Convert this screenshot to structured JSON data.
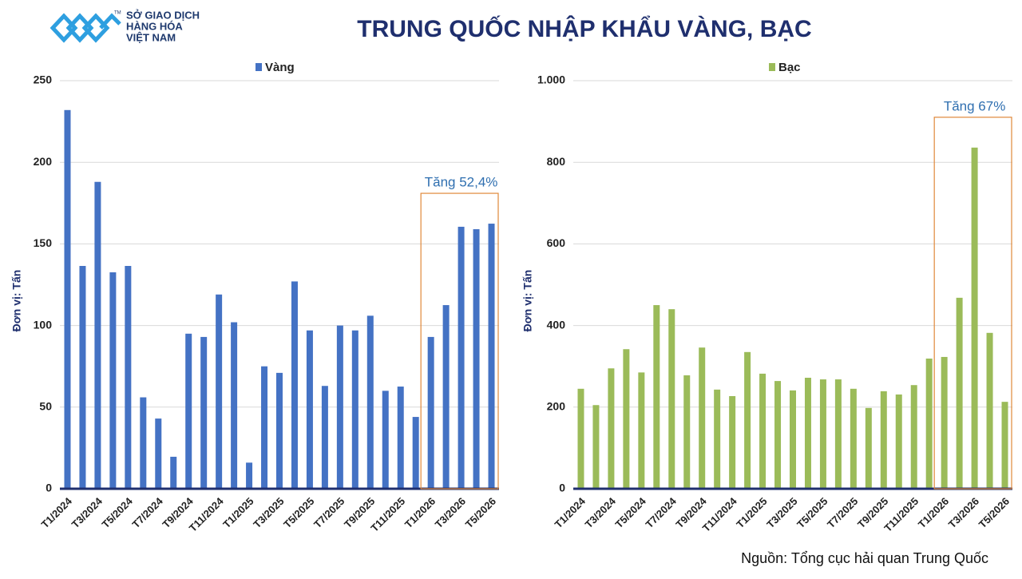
{
  "logo": {
    "lines": [
      "SỞ GIAO DỊCH",
      "HÀNG HÓA",
      "VIỆT NAM"
    ],
    "mark": "TM"
  },
  "title": "TRUNG QUỐC NHẬP KHẨU VÀNG, BẠC",
  "source": "Nguồn: Tổng cục hải quan Trung Quốc",
  "chart_data": [
    {
      "type": "bar",
      "y_label": "Đơn vị: Tấn",
      "categories": [
        "T1/2024",
        null,
        "T3/2024",
        null,
        "T5/2024",
        null,
        "T7/2024",
        null,
        "T9/2024",
        null,
        "T11/2024",
        null,
        "T1/2025",
        null,
        "T3/2025",
        null,
        "T5/2025",
        null,
        "T7/2025",
        null,
        "T9/2025",
        null,
        "T11/2025",
        null,
        "T1/2026",
        null,
        "T3/2026",
        null,
        "T5/2026"
      ],
      "series": [
        {
          "name": "Vàng",
          "color": "#4472c4",
          "values": [
            232,
            136.5,
            188,
            132.6,
            136.5,
            56,
            43,
            19.6,
            95,
            93,
            119,
            102,
            16,
            75,
            71,
            127,
            97,
            63,
            100,
            97,
            106,
            60,
            62.6,
            44,
            93,
            112.5,
            160.5,
            159,
            162.4
          ]
        }
      ],
      "ylim": [
        0,
        250
      ],
      "yticks": [
        0,
        50,
        100,
        150,
        200,
        250
      ],
      "grid": true,
      "annotation": "Tăng 52,4%"
    },
    {
      "type": "bar",
      "y_label": "Đơn vị: Tấn",
      "categories": [
        "T1/2024",
        null,
        "T3/2024",
        null,
        "T5/2024",
        null,
        "T7/2024",
        null,
        "T9/2024",
        null,
        "T11/2024",
        null,
        "T1/2025",
        null,
        "T3/2025",
        null,
        "T5/2025",
        null,
        "T7/2025",
        null,
        "T9/2025",
        null,
        "T11/2025",
        null,
        "T1/2026",
        null,
        "T3/2026",
        null,
        "T5/2026"
      ],
      "series": [
        {
          "name": "Bạc",
          "color": "#9bbb59",
          "values": [
            245,
            205,
            295,
            342,
            285,
            450,
            440,
            278,
            346,
            243,
            227,
            335,
            282,
            264,
            241,
            272,
            268,
            268,
            245,
            198,
            239,
            231,
            254,
            319,
            323,
            468,
            836,
            382,
            213
          ]
        }
      ],
      "ylim": [
        0,
        1000
      ],
      "yticks": [
        0,
        200,
        400,
        600,
        800,
        {
          "value": 1000,
          "label": "1.000"
        }
      ],
      "grid": true,
      "annotation": "Tăng 67%"
    }
  ]
}
